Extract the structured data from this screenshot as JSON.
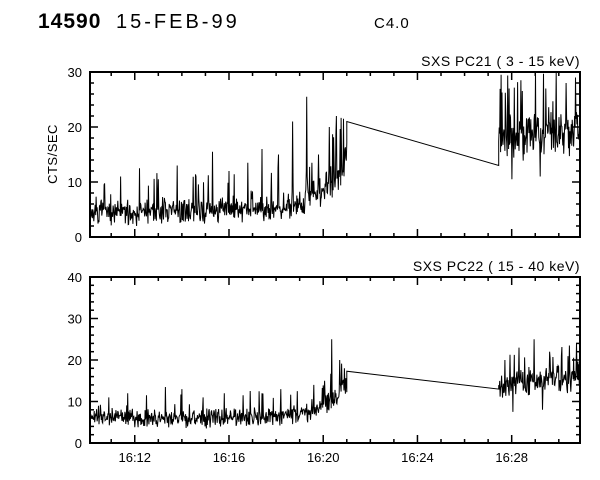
{
  "header": {
    "obs_id": "14590",
    "date": "15-FEB-99",
    "flare_class": "C4.0"
  },
  "chart_data": [
    {
      "type": "line",
      "title": "SXS PC21 ( 3 - 15 keV)",
      "xlabel": "",
      "ylabel": "CTS/SEC",
      "ylim": [
        0,
        30
      ],
      "yticks": [
        0,
        10,
        20,
        30
      ],
      "y_minor_step": 2,
      "x_range_minutes": [
        10.1,
        30.9
      ],
      "x_ticks_minutes": [
        12,
        16,
        20,
        24,
        28
      ],
      "x_tick_labels": [],
      "x_minor_step_minutes": 1,
      "grid": false,
      "line_color": "#000000",
      "segments": [
        {
          "kind": "noisy",
          "t0": 10.1,
          "t1": 21.0,
          "dt": 0.02,
          "seed": 7,
          "base": [
            [
              10.1,
              4.3
            ],
            [
              13.5,
              4.6
            ],
            [
              17.5,
              5.2
            ],
            [
              19.0,
              6.2
            ],
            [
              20.0,
              8.5
            ],
            [
              20.6,
              12.0
            ],
            [
              21.0,
              15.0
            ]
          ],
          "amp": [
            [
              10.1,
              2.6
            ],
            [
              18.5,
              2.8
            ],
            [
              20.0,
              3.4
            ],
            [
              21.0,
              5.0
            ]
          ],
          "spike_prob": 0.05,
          "spike_boost": 4.5,
          "clip_min": 0.4,
          "clip_max": 30,
          "extremes": [
            [
              10.7,
              9.5
            ],
            [
              11.4,
              11
            ],
            [
              12.2,
              12.5
            ],
            [
              13.0,
              10.5
            ],
            [
              13.8,
              13
            ],
            [
              14.6,
              11
            ],
            [
              15.3,
              15.5
            ],
            [
              16.0,
              12
            ],
            [
              16.8,
              13.5
            ],
            [
              17.4,
              16
            ],
            [
              18.1,
              15
            ],
            [
              18.7,
              21
            ],
            [
              19.3,
              25.5
            ],
            [
              19.8,
              15
            ],
            [
              20.25,
              20
            ],
            [
              20.55,
              22
            ],
            [
              20.85,
              21.5
            ]
          ]
        },
        {
          "kind": "line",
          "points": [
            [
              21.0,
              21.0
            ],
            [
              27.45,
              13.0
            ]
          ]
        },
        {
          "kind": "noisy",
          "t0": 27.45,
          "t1": 30.9,
          "dt": 0.02,
          "seed": 8,
          "base": [
            [
              27.45,
              18.5
            ],
            [
              30.9,
              19.5
            ]
          ],
          "amp": [
            [
              27.45,
              5.0
            ],
            [
              30.9,
              5.0
            ]
          ],
          "spike_prob": 0.08,
          "spike_boost": 6,
          "clip_min": 9.5,
          "clip_max": 30,
          "extremes": [
            [
              27.55,
              29.5
            ],
            [
              27.9,
              27
            ],
            [
              28.0,
              10.5
            ],
            [
              28.4,
              28.5
            ],
            [
              29.0,
              30
            ],
            [
              29.2,
              11
            ],
            [
              29.45,
              27
            ],
            [
              29.9,
              30
            ],
            [
              30.3,
              28
            ],
            [
              30.7,
              29
            ]
          ]
        }
      ]
    },
    {
      "type": "line",
      "title": "SXS PC22 ( 15 - 40 keV)",
      "xlabel": "",
      "ylabel": "",
      "ylim": [
        0,
        40
      ],
      "yticks": [
        0,
        10,
        20,
        30,
        40
      ],
      "y_minor_step": 2,
      "x_range_minutes": [
        10.1,
        30.9
      ],
      "x_ticks_minutes": [
        12,
        16,
        20,
        24,
        28
      ],
      "x_tick_labels": [
        "16:12",
        "16:16",
        "16:20",
        "16:24",
        "16:28"
      ],
      "x_minor_step_minutes": 1,
      "grid": false,
      "line_color": "#000000",
      "segments": [
        {
          "kind": "noisy",
          "t0": 10.1,
          "t1": 21.0,
          "dt": 0.02,
          "seed": 21,
          "base": [
            [
              10.1,
              6.3
            ],
            [
              14.0,
              5.9
            ],
            [
              18.0,
              6.3
            ],
            [
              19.5,
              7.5
            ],
            [
              20.4,
              10.5
            ],
            [
              21.0,
              13.5
            ]
          ],
          "amp": [
            [
              10.1,
              2.6
            ],
            [
              19.0,
              2.7
            ],
            [
              21.0,
              3.8
            ]
          ],
          "spike_prob": 0.04,
          "spike_boost": 4,
          "clip_min": 1.2,
          "clip_max": 40,
          "extremes": [
            [
              10.9,
              11
            ],
            [
              11.7,
              12
            ],
            [
              12.5,
              11.5
            ],
            [
              13.3,
              13.5
            ],
            [
              14.0,
              13
            ],
            [
              14.9,
              11
            ],
            [
              15.8,
              12
            ],
            [
              16.6,
              11.5
            ],
            [
              17.4,
              12
            ],
            [
              18.2,
              13
            ],
            [
              18.9,
              12.5
            ],
            [
              19.6,
              14
            ],
            [
              20.05,
              15
            ],
            [
              20.35,
              25
            ],
            [
              20.7,
              20
            ],
            [
              20.9,
              18
            ]
          ]
        },
        {
          "kind": "line",
          "points": [
            [
              21.0,
              17.3
            ],
            [
              27.45,
              13.0
            ]
          ]
        },
        {
          "kind": "noisy",
          "t0": 27.45,
          "t1": 30.9,
          "dt": 0.02,
          "seed": 22,
          "base": [
            [
              27.45,
              14.5
            ],
            [
              29.0,
              15.0
            ],
            [
              30.9,
              15.5
            ]
          ],
          "amp": [
            [
              27.45,
              3.8
            ],
            [
              30.9,
              4.0
            ]
          ],
          "spike_prob": 0.06,
          "spike_boost": 4.5,
          "clip_min": 6.5,
          "clip_max": 40,
          "extremes": [
            [
              27.7,
              20
            ],
            [
              28.05,
              7.5
            ],
            [
              28.3,
              23
            ],
            [
              28.95,
              25
            ],
            [
              29.3,
              8
            ],
            [
              29.6,
              22
            ],
            [
              30.1,
              21
            ],
            [
              30.45,
              23.5
            ],
            [
              30.75,
              24
            ]
          ]
        }
      ]
    }
  ]
}
